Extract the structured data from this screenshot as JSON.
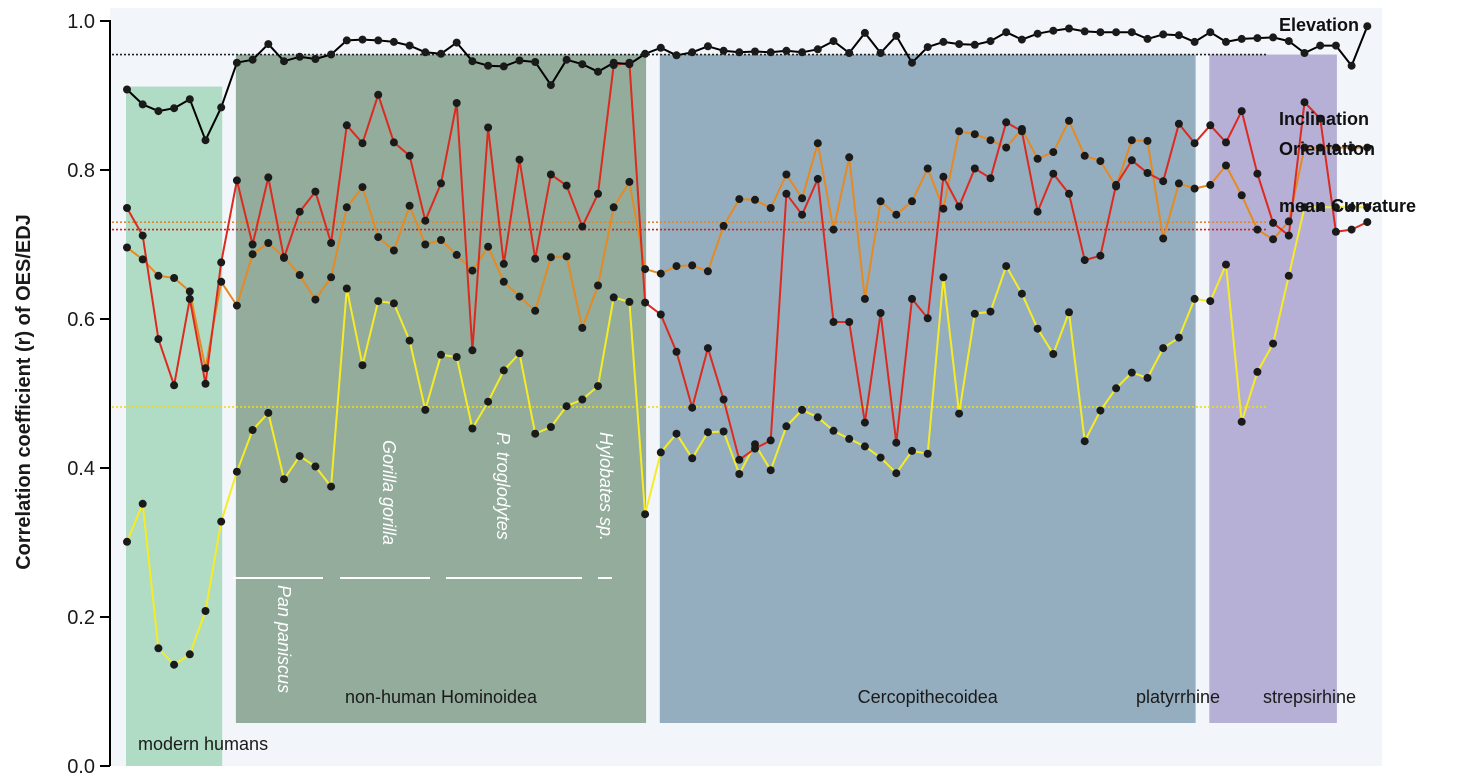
{
  "chart_data": {
    "type": "line",
    "ylabel": "Correlation coefficient (r) of OES/EDJ",
    "ylim": [
      0.0,
      1.0
    ],
    "yticks": [
      "0.0",
      "0.2",
      "0.4",
      "0.6",
      "0.8",
      "1.0"
    ],
    "grid": false,
    "legend": "right-end labels",
    "groups": [
      {
        "label": "modern humans",
        "start": 0,
        "end": 6,
        "color": "#b0dcc6"
      },
      {
        "label": "non-human Hominoidea",
        "start": 7,
        "end": 33,
        "color": "#93ac9c"
      },
      {
        "label": "Cercopithecoidea",
        "start": 34,
        "end": 68,
        "color": "#94aebf"
      },
      {
        "label": "platyrrhine",
        "start": 69,
        "end": 77,
        "color": "#b6b0d6"
      },
      {
        "label": "strepsirhine",
        "start": 78,
        "end": 79,
        "color": ""
      }
    ],
    "subgroups": [
      {
        "label": "Pan paniscus",
        "start": 7,
        "end": 13
      },
      {
        "label": "Gorilla gorilla",
        "start": 14,
        "end": 20
      },
      {
        "label": "P. troglodytes",
        "start": 21,
        "end": 30
      },
      {
        "label": "Hylobates sp.",
        "start": 31,
        "end": 33
      }
    ],
    "series": [
      {
        "name": "Elevation",
        "color": "#000000",
        "mean": 0.955,
        "values": [
          0.908,
          0.888,
          0.879,
          0.883,
          0.895,
          0.84,
          0.884,
          0.944,
          0.948,
          0.969,
          0.946,
          0.952,
          0.949,
          0.955,
          0.974,
          0.975,
          0.974,
          0.972,
          0.967,
          0.958,
          0.956,
          0.971,
          0.946,
          0.94,
          0.939,
          0.947,
          0.945,
          0.914,
          0.948,
          0.942,
          0.932,
          0.944,
          0.942,
          0.956,
          0.964,
          0.954,
          0.958,
          0.966,
          0.96,
          0.958,
          0.959,
          0.958,
          0.96,
          0.958,
          0.962,
          0.973,
          0.957,
          0.984,
          0.957,
          0.98,
          0.944,
          0.965,
          0.972,
          0.969,
          0.968,
          0.973,
          0.985,
          0.975,
          0.983,
          0.987,
          0.99,
          0.986,
          0.985,
          0.985,
          0.985,
          0.976,
          0.982,
          0.981,
          0.972,
          0.985,
          0.972,
          0.976,
          0.977,
          0.978,
          0.973,
          0.957,
          0.967,
          0.967,
          0.94,
          0.993
        ]
      },
      {
        "name": "Inclination",
        "color": "#dc2a1f",
        "mean": 0.72,
        "values": [
          0.749,
          0.712,
          0.573,
          0.511,
          0.627,
          0.513,
          0.676,
          0.786,
          0.7,
          0.79,
          0.682,
          0.744,
          0.771,
          0.702,
          0.86,
          0.836,
          0.901,
          0.837,
          0.819,
          0.732,
          0.782,
          0.89,
          0.558,
          0.857,
          0.674,
          0.814,
          0.681,
          0.794,
          0.779,
          0.724,
          0.768,
          0.941,
          0.944,
          0.622,
          0.606,
          0.556,
          0.481,
          0.561,
          0.492,
          0.411,
          0.426,
          0.437,
          0.768,
          0.74,
          0.788,
          0.596,
          0.596,
          0.461,
          0.608,
          0.434,
          0.627,
          0.601,
          0.791,
          0.751,
          0.802,
          0.789,
          0.864,
          0.852,
          0.744,
          0.795,
          0.768,
          0.679,
          0.685,
          0.78,
          0.813,
          0.796,
          0.785,
          0.862,
          0.836,
          0.86,
          0.837,
          0.879,
          0.795,
          0.729,
          0.712,
          0.891,
          0.869,
          0.717,
          0.72,
          0.73
        ]
      },
      {
        "name": "Orientation",
        "color": "#e58a22",
        "mean": 0.73,
        "values": [
          0.696,
          0.68,
          0.658,
          0.655,
          0.637,
          0.534,
          0.65,
          0.618,
          0.687,
          0.702,
          0.683,
          0.659,
          0.626,
          0.656,
          0.75,
          0.777,
          0.71,
          0.692,
          0.752,
          0.7,
          0.706,
          0.686,
          0.665,
          0.697,
          0.65,
          0.63,
          0.611,
          0.683,
          0.684,
          0.588,
          0.645,
          0.75,
          0.784,
          0.667,
          0.661,
          0.671,
          0.672,
          0.664,
          0.725,
          0.761,
          0.76,
          0.749,
          0.794,
          0.762,
          0.836,
          0.72,
          0.817,
          0.627,
          0.758,
          0.74,
          0.758,
          0.802,
          0.748,
          0.852,
          0.848,
          0.84,
          0.83,
          0.855,
          0.815,
          0.824,
          0.866,
          0.819,
          0.812,
          0.778,
          0.84,
          0.839,
          0.708,
          0.782,
          0.775,
          0.78,
          0.806,
          0.766,
          0.72,
          0.707,
          0.731,
          0.83,
          0.83,
          0.83,
          0.83,
          0.83
        ]
      },
      {
        "name": "mean Curvature",
        "color": "#f6ec25",
        "mean": 0.482,
        "values": [
          0.301,
          0.352,
          0.158,
          0.136,
          0.15,
          0.208,
          0.328,
          0.395,
          0.451,
          0.474,
          0.385,
          0.416,
          0.402,
          0.375,
          0.641,
          0.538,
          0.624,
          0.621,
          0.571,
          0.478,
          0.552,
          0.549,
          0.453,
          0.489,
          0.531,
          0.554,
          0.446,
          0.455,
          0.483,
          0.492,
          0.51,
          0.629,
          0.623,
          0.338,
          0.421,
          0.446,
          0.413,
          0.448,
          0.449,
          0.392,
          0.432,
          0.397,
          0.456,
          0.478,
          0.468,
          0.45,
          0.439,
          0.429,
          0.414,
          0.393,
          0.423,
          0.419,
          0.656,
          0.473,
          0.607,
          0.61,
          0.671,
          0.634,
          0.587,
          0.553,
          0.609,
          0.436,
          0.477,
          0.507,
          0.528,
          0.521,
          0.561,
          0.575,
          0.627,
          0.624,
          0.673,
          0.462,
          0.529,
          0.567,
          0.658,
          0.75,
          0.75,
          0.75,
          0.75,
          0.75
        ]
      }
    ]
  }
}
